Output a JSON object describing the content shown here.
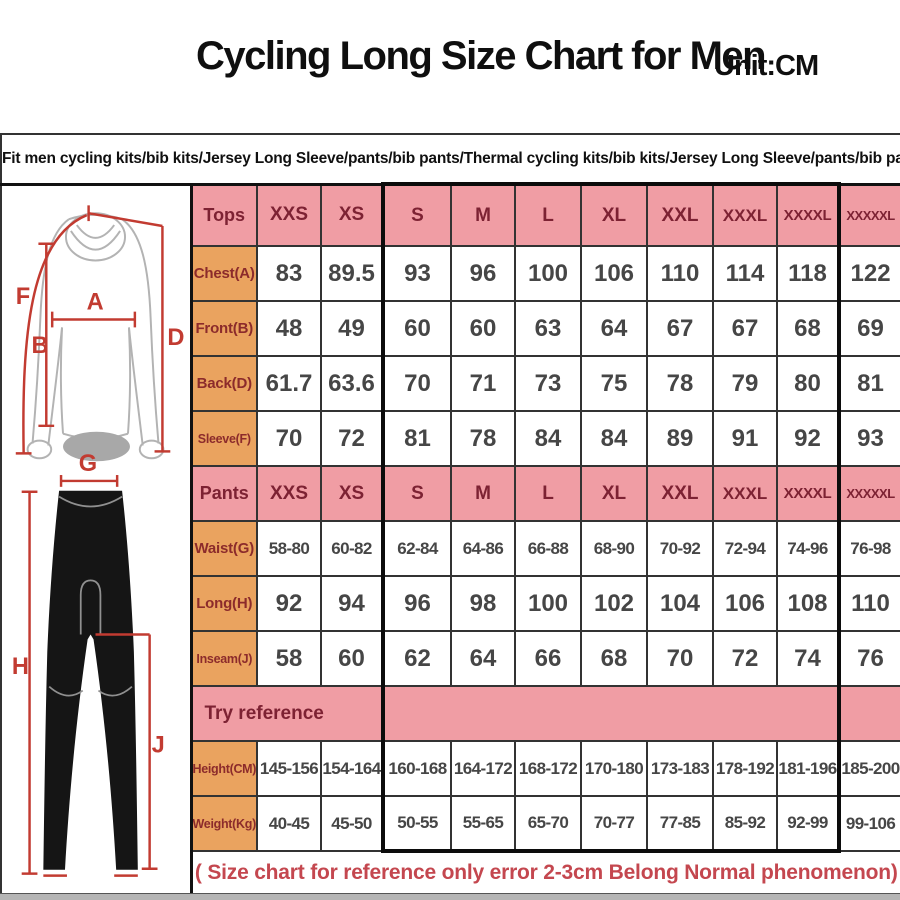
{
  "title": "Cycling Long Size Chart for Men",
  "unit_label": "Unit:CM",
  "subtitle": "Fit men cycling kits/bib kits/Jersey Long Sleeve/pants/bib pants/Thermal cycling kits/bib kits/Jersey Long Sleeve/pants/bib pants",
  "note": "( Size chart for reference only  error 2-3cm  Belong Normal phenomenon)",
  "figure": {
    "labels": {
      "F": "F",
      "A": "A",
      "B": "B",
      "D": "D",
      "G": "G",
      "H": "H",
      "J": "J"
    }
  },
  "colors": {
    "header_pink": "#f09da4",
    "label_orange": "#eaa35f",
    "header_text": "#7d2233",
    "label_text": "#8c2b2b",
    "value_text": "#464646",
    "note_red": "#c4474f",
    "measure_red": "#c23b31",
    "highlight_border": "#0c0c0c"
  },
  "chart_data": {
    "type": "table",
    "title": "Cycling Long Size Chart for Men",
    "unit": "CM",
    "sizes": [
      "XXS",
      "XS",
      "S",
      "M",
      "L",
      "XL",
      "XXL",
      "XXXL",
      "XXXXL",
      "XXXXXL"
    ],
    "highlighted_size_range": [
      "S",
      "XXXXL"
    ],
    "sections": [
      {
        "header": "Tops",
        "rows": [
          {
            "label": "Chest(A)",
            "values": [
              "83",
              "89.5",
              "93",
              "96",
              "100",
              "106",
              "110",
              "114",
              "118",
              "122"
            ]
          },
          {
            "label": "Front(B)",
            "values": [
              "48",
              "49",
              "60",
              "60",
              "63",
              "64",
              "67",
              "67",
              "68",
              "69"
            ]
          },
          {
            "label": "Back(D)",
            "values": [
              "61.7",
              "63.6",
              "70",
              "71",
              "73",
              "75",
              "78",
              "79",
              "80",
              "81"
            ]
          },
          {
            "label": "Sleeve(F)",
            "values": [
              "70",
              "72",
              "81",
              "78",
              "84",
              "84",
              "89",
              "91",
              "92",
              "93"
            ]
          }
        ]
      },
      {
        "header": "Pants",
        "rows": [
          {
            "label": "Waist(G)",
            "values": [
              "58-80",
              "60-82",
              "62-84",
              "64-86",
              "66-88",
              "68-90",
              "70-92",
              "72-94",
              "74-96",
              "76-98"
            ]
          },
          {
            "label": "Long(H)",
            "values": [
              "92",
              "94",
              "96",
              "98",
              "100",
              "102",
              "104",
              "106",
              "108",
              "110"
            ]
          },
          {
            "label": "Inseam(J)",
            "values": [
              "58",
              "60",
              "62",
              "64",
              "66",
              "68",
              "70",
              "72",
              "74",
              "76"
            ]
          }
        ]
      },
      {
        "header": "Try reference",
        "rows": [
          {
            "label": "Height(CM)",
            "values": [
              "145-156",
              "154-164",
              "160-168",
              "164-172",
              "168-172",
              "170-180",
              "173-183",
              "178-192",
              "181-196",
              "185-200"
            ]
          },
          {
            "label": "Weight(Kg)",
            "values": [
              "40-45",
              "45-50",
              "50-55",
              "55-65",
              "65-70",
              "70-77",
              "77-85",
              "85-92",
              "92-99",
              "99-106"
            ]
          }
        ]
      }
    ]
  }
}
